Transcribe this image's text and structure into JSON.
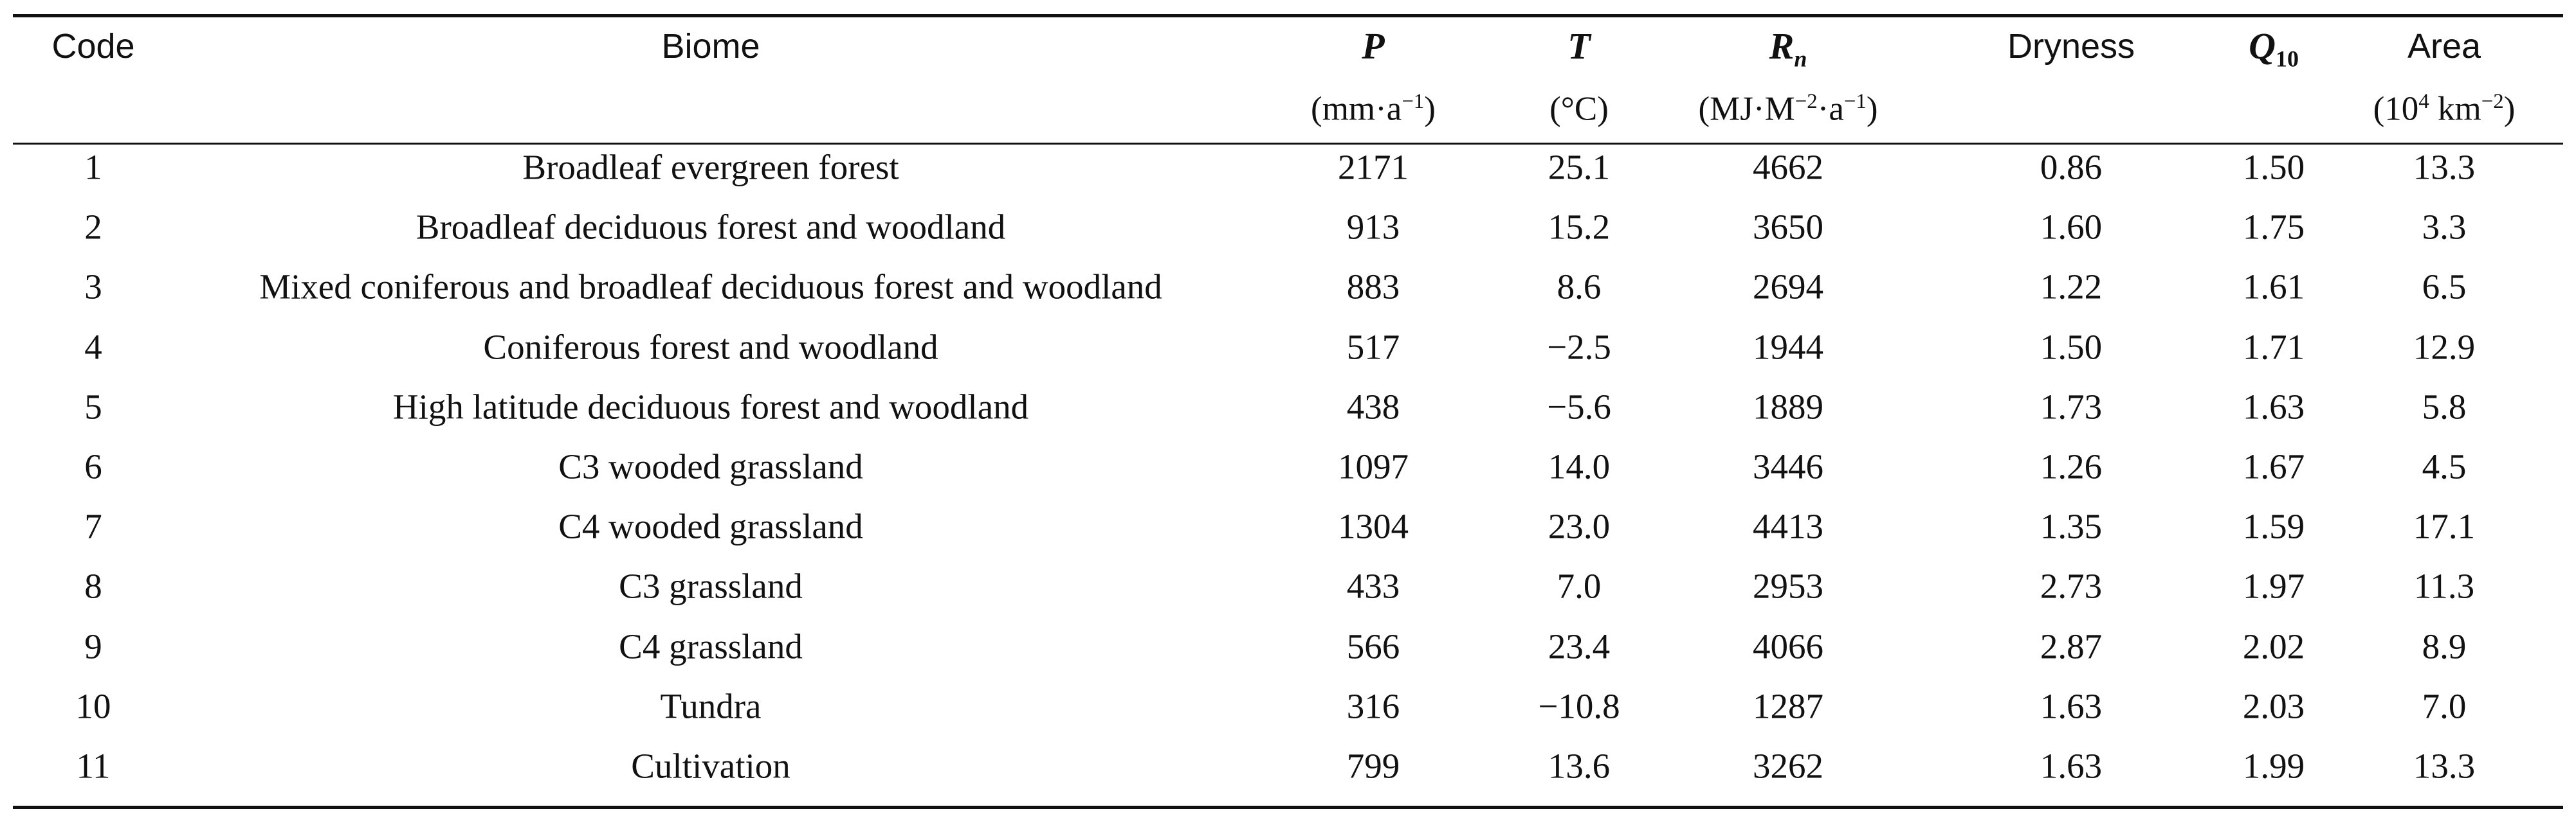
{
  "headers": {
    "code": "Code",
    "biome": "Biome",
    "p": "P",
    "t": "T",
    "rn_main": "R",
    "rn_sub": "n",
    "dryness": "Dryness",
    "q10_main": "Q",
    "q10_sub": "10",
    "area": "Area"
  },
  "units": {
    "p_a": "(mm·a",
    "p_sup": "−1",
    "p_b": ")",
    "t": "(°C)",
    "rn_a": "(MJ·M",
    "rn_sup1": "−2",
    "rn_b": "·a",
    "rn_sup2": "−1",
    "rn_c": ")",
    "area_a": "(10",
    "area_sup1": "4",
    "area_b": " km",
    "area_sup2": "−2",
    "area_c": ")"
  },
  "rows": [
    {
      "code": "1",
      "biome": "Broadleaf evergreen forest",
      "p": "2171",
      "t": "25.1",
      "rn": "4662",
      "dryness": "0.86",
      "q10": "1.50",
      "area": "13.3"
    },
    {
      "code": "2",
      "biome": "Broadleaf deciduous forest and woodland",
      "p": "913",
      "t": "15.2",
      "rn": "3650",
      "dryness": "1.60",
      "q10": "1.75",
      "area": "3.3"
    },
    {
      "code": "3",
      "biome": "Mixed coniferous and broadleaf deciduous forest and woodland",
      "p": "883",
      "t": "8.6",
      "rn": "2694",
      "dryness": "1.22",
      "q10": "1.61",
      "area": "6.5"
    },
    {
      "code": "4",
      "biome": "Coniferous forest and woodland",
      "p": "517",
      "t": "−2.5",
      "rn": "1944",
      "dryness": "1.50",
      "q10": "1.71",
      "area": "12.9"
    },
    {
      "code": "5",
      "biome": "High latitude deciduous forest and woodland",
      "p": "438",
      "t": "−5.6",
      "rn": "1889",
      "dryness": "1.73",
      "q10": "1.63",
      "area": "5.8"
    },
    {
      "code": "6",
      "biome": "C3 wooded grassland",
      "p": "1097",
      "t": "14.0",
      "rn": "3446",
      "dryness": "1.26",
      "q10": "1.67",
      "area": "4.5"
    },
    {
      "code": "7",
      "biome": "C4 wooded grassland",
      "p": "1304",
      "t": "23.0",
      "rn": "4413",
      "dryness": "1.35",
      "q10": "1.59",
      "area": "17.1"
    },
    {
      "code": "8",
      "biome": "C3 grassland",
      "p": "433",
      "t": "7.0",
      "rn": "2953",
      "dryness": "2.73",
      "q10": "1.97",
      "area": "11.3"
    },
    {
      "code": "9",
      "biome": "C4 grassland",
      "p": "566",
      "t": "23.4",
      "rn": "4066",
      "dryness": "2.87",
      "q10": "2.02",
      "area": "8.9"
    },
    {
      "code": "10",
      "biome": "Tundra",
      "p": "316",
      "t": "−10.8",
      "rn": "1287",
      "dryness": "1.63",
      "q10": "2.03",
      "area": "7.0"
    },
    {
      "code": "11",
      "biome": "Cultivation",
      "p": "799",
      "t": "13.6",
      "rn": "3262",
      "dryness": "1.63",
      "q10": "1.99",
      "area": "13.3"
    }
  ]
}
